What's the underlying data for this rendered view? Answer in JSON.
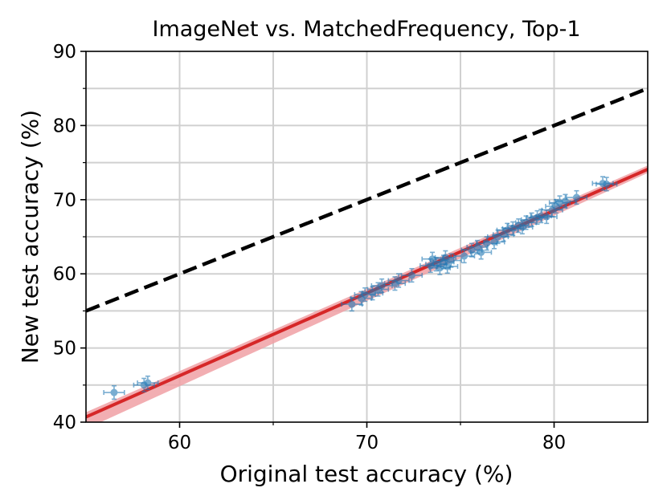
{
  "chart_data": {
    "type": "scatter",
    "title": "ImageNet vs. MatchedFrequency, Top-1",
    "xlabel": "Original test accuracy (%)",
    "ylabel": "New test accuracy (%)",
    "xlim": [
      55,
      85
    ],
    "ylim": [
      40,
      90
    ],
    "xticks": [
      60,
      70,
      80
    ],
    "yticks": [
      40,
      50,
      60,
      70,
      80,
      90
    ],
    "grid": true,
    "colors": {
      "points": "#1f77b4",
      "fit_line": "#d62728",
      "fit_band": "#f0a0a5",
      "reference_line": "#000000",
      "grid": "#d0d0d0"
    },
    "reference_line": {
      "style": "dashed",
      "points": [
        [
          55,
          55
        ],
        [
          85,
          85
        ]
      ]
    },
    "fit_line": {
      "points": [
        [
          55,
          40.7
        ],
        [
          85,
          74.1
        ]
      ]
    },
    "points": [
      {
        "x": 56.5,
        "y": 44.0
      },
      {
        "x": 58.1,
        "y": 45.0
      },
      {
        "x": 58.3,
        "y": 45.3
      },
      {
        "x": 69.2,
        "y": 55.9
      },
      {
        "x": 69.7,
        "y": 56.7
      },
      {
        "x": 69.9,
        "y": 57.2
      },
      {
        "x": 70.3,
        "y": 57.4
      },
      {
        "x": 70.6,
        "y": 57.9
      },
      {
        "x": 70.8,
        "y": 58.4
      },
      {
        "x": 71.5,
        "y": 58.7
      },
      {
        "x": 71.7,
        "y": 59.1
      },
      {
        "x": 72.4,
        "y": 59.8
      },
      {
        "x": 73.4,
        "y": 61.1
      },
      {
        "x": 73.5,
        "y": 62.0
      },
      {
        "x": 73.7,
        "y": 61.3
      },
      {
        "x": 73.9,
        "y": 60.8
      },
      {
        "x": 74.1,
        "y": 61.6
      },
      {
        "x": 74.2,
        "y": 62.2
      },
      {
        "x": 74.3,
        "y": 61.0
      },
      {
        "x": 74.5,
        "y": 61.8
      },
      {
        "x": 75.2,
        "y": 62.4
      },
      {
        "x": 75.6,
        "y": 63.2
      },
      {
        "x": 75.9,
        "y": 63.6
      },
      {
        "x": 76.1,
        "y": 62.9
      },
      {
        "x": 76.4,
        "y": 64.1
      },
      {
        "x": 76.8,
        "y": 64.3
      },
      {
        "x": 77.0,
        "y": 65.0
      },
      {
        "x": 77.3,
        "y": 65.3
      },
      {
        "x": 77.5,
        "y": 65.9
      },
      {
        "x": 77.8,
        "y": 66.1
      },
      {
        "x": 78.1,
        "y": 66.5
      },
      {
        "x": 78.3,
        "y": 66.3
      },
      {
        "x": 78.5,
        "y": 66.9
      },
      {
        "x": 78.8,
        "y": 67.3
      },
      {
        "x": 79.1,
        "y": 67.6
      },
      {
        "x": 79.3,
        "y": 67.8
      },
      {
        "x": 79.6,
        "y": 67.7
      },
      {
        "x": 79.9,
        "y": 68.6
      },
      {
        "x": 80.1,
        "y": 69.1
      },
      {
        "x": 80.3,
        "y": 69.6
      },
      {
        "x": 80.6,
        "y": 69.8
      },
      {
        "x": 81.2,
        "y": 70.3
      },
      {
        "x": 82.6,
        "y": 72.2
      },
      {
        "x": 82.8,
        "y": 72.1
      }
    ]
  }
}
